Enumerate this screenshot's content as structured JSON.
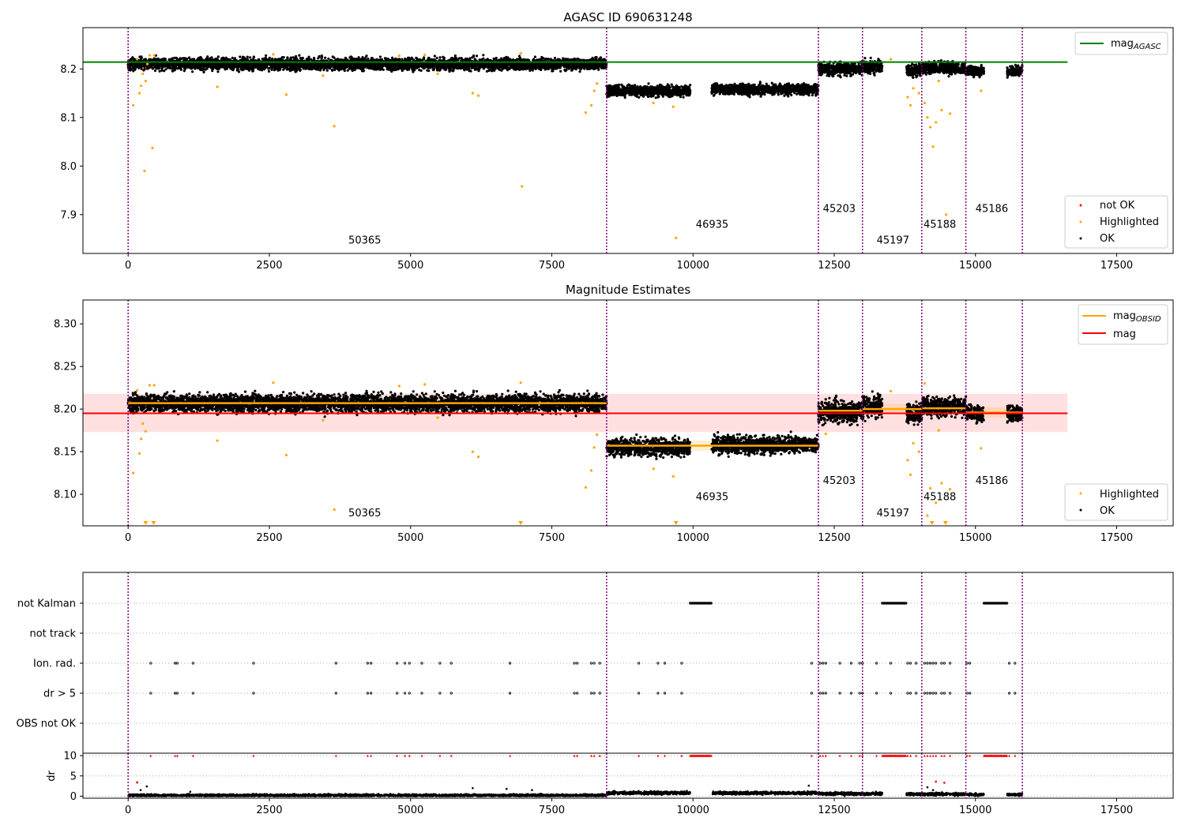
{
  "chart_data": [
    {
      "type": "scatter",
      "title": "AGASC ID 690631248",
      "xlim": [
        -800,
        18500
      ],
      "ylim": [
        7.82,
        8.285
      ],
      "xticks": [
        0,
        2500,
        5000,
        7500,
        10000,
        12500,
        15000,
        17500
      ],
      "xtick_labels": [
        "0",
        "2500",
        "5000",
        "7500",
        "10000",
        "12500",
        "15000",
        "17500"
      ],
      "yticks": [
        7.9,
        8.0,
        8.1,
        8.2
      ],
      "ytick_labels": [
        "7.9",
        "8.0",
        "8.1",
        "8.2"
      ],
      "obsid_boundaries": [
        0,
        8470,
        12220,
        13000,
        14050,
        14830,
        15830
      ],
      "obsid_labels": [
        {
          "text": "50365",
          "x": 3900,
          "y": 7.84
        },
        {
          "text": "46935",
          "x": 10050,
          "y": 7.873
        },
        {
          "text": "45203",
          "x": 12300,
          "y": 7.905
        },
        {
          "text": "45197",
          "x": 13250,
          "y": 7.84
        },
        {
          "text": "45188",
          "x": 14080,
          "y": 7.873
        },
        {
          "text": "45186",
          "x": 15000,
          "y": 7.905
        }
      ],
      "reference_lines": [
        {
          "name": "mag_AGASC",
          "value": 8.214,
          "x_range": [
            -800,
            16630
          ],
          "color": "#008000"
        }
      ],
      "ok_segments": [
        {
          "x": [
            0,
            8470
          ],
          "center": 8.21,
          "spread": 0.012
        },
        {
          "x": [
            8470,
            9950
          ],
          "center": 8.155,
          "spread": 0.011
        },
        {
          "x": [
            10330,
            12220
          ],
          "center": 8.158,
          "spread": 0.011
        },
        {
          "x": [
            12220,
            13000
          ],
          "center": 8.2,
          "spread": 0.013
        },
        {
          "x": [
            13000,
            13350
          ],
          "center": 8.205,
          "spread": 0.013
        },
        {
          "x": [
            13780,
            14050
          ],
          "center": 8.197,
          "spread": 0.013
        },
        {
          "x": [
            14050,
            14830
          ],
          "center": 8.203,
          "spread": 0.012
        },
        {
          "x": [
            14830,
            15150
          ],
          "center": 8.195,
          "spread": 0.01
        },
        {
          "x": [
            15560,
            15830
          ],
          "center": 8.196,
          "spread": 0.01
        }
      ],
      "highlighted_points": [
        [
          90,
          8.125
        ],
        [
          160,
          8.22
        ],
        [
          200,
          8.15
        ],
        [
          230,
          8.165
        ],
        [
          260,
          8.19
        ],
        [
          290,
          7.99
        ],
        [
          310,
          8.175
        ],
        [
          340,
          8.21
        ],
        [
          380,
          8.228
        ],
        [
          430,
          8.037
        ],
        [
          460,
          8.228
        ],
        [
          1580,
          8.163
        ],
        [
          2570,
          8.23
        ],
        [
          2800,
          8.147
        ],
        [
          3450,
          8.186
        ],
        [
          3650,
          8.082
        ],
        [
          4800,
          8.227
        ],
        [
          5250,
          8.229
        ],
        [
          5480,
          8.19
        ],
        [
          6100,
          8.15
        ],
        [
          6200,
          8.145
        ],
        [
          6950,
          8.232
        ],
        [
          6970,
          7.958
        ],
        [
          8100,
          8.11
        ],
        [
          8200,
          8.125
        ],
        [
          8250,
          8.155
        ],
        [
          8300,
          8.17
        ],
        [
          9300,
          8.13
        ],
        [
          9650,
          8.122
        ],
        [
          9700,
          7.852
        ],
        [
          13500,
          8.22
        ],
        [
          13800,
          8.142
        ],
        [
          13850,
          8.125
        ],
        [
          13900,
          8.16
        ],
        [
          14000,
          8.15
        ],
        [
          14100,
          8.13
        ],
        [
          14150,
          8.1
        ],
        [
          14200,
          8.08
        ],
        [
          14250,
          8.04
        ],
        [
          14300,
          8.09
        ],
        [
          14350,
          8.175
        ],
        [
          14400,
          8.115
        ],
        [
          14480,
          7.9
        ],
        [
          14550,
          8.108
        ],
        [
          15100,
          8.155
        ]
      ],
      "legend": {
        "placement": "upper-right",
        "entries": [
          "mag_AGASC"
        ]
      },
      "legend2": {
        "placement": "lower-right",
        "entries": [
          "not OK",
          "Highlighted",
          "OK"
        ]
      }
    },
    {
      "type": "scatter",
      "title": "Magnitude Estimates",
      "xlim": [
        -800,
        18500
      ],
      "ylim": [
        8.063,
        8.328
      ],
      "xticks": [
        0,
        2500,
        5000,
        7500,
        10000,
        12500,
        15000,
        17500
      ],
      "xtick_labels": [
        "0",
        "2500",
        "5000",
        "7500",
        "10000",
        "12500",
        "15000",
        "17500"
      ],
      "yticks": [
        8.1,
        8.15,
        8.2,
        8.25,
        8.3
      ],
      "ytick_labels": [
        "8.10",
        "8.15",
        "8.20",
        "8.25",
        "8.30"
      ],
      "obsid_boundaries": [
        0,
        8470,
        12220,
        13000,
        14050,
        14830,
        15830
      ],
      "obsid_labels": [
        {
          "text": "50365",
          "x": 3900,
          "y": 8.074
        },
        {
          "text": "46935",
          "x": 10050,
          "y": 8.093
        },
        {
          "text": "45203",
          "x": 12300,
          "y": 8.112
        },
        {
          "text": "45197",
          "x": 13250,
          "y": 8.074
        },
        {
          "text": "45188",
          "x": 14080,
          "y": 8.093
        },
        {
          "text": "45186",
          "x": 15000,
          "y": 8.112
        }
      ],
      "mag_band": {
        "center": 8.195,
        "low": 8.173,
        "high": 8.218,
        "x_range": [
          -800,
          16630
        ]
      },
      "mag_line": {
        "value": 8.195,
        "x_range": [
          -800,
          16630
        ],
        "color": "#ff0000"
      },
      "obsid_mags": [
        {
          "x": [
            0,
            8470
          ],
          "value": 8.207
        },
        {
          "x": [
            8470,
            12220
          ],
          "value": 8.157
        },
        {
          "x": [
            12220,
            13000
          ],
          "value": 8.198
        },
        {
          "x": [
            13000,
            14050
          ],
          "value": 8.2
        },
        {
          "x": [
            14050,
            14830
          ],
          "value": 8.201
        },
        {
          "x": [
            14830,
            15830
          ],
          "value": 8.196
        }
      ],
      "ok_segments": [
        {
          "x": [
            0,
            8470
          ],
          "center": 8.207,
          "spread": 0.01
        },
        {
          "x": [
            8470,
            9950
          ],
          "center": 8.155,
          "spread": 0.01
        },
        {
          "x": [
            10330,
            12220
          ],
          "center": 8.158,
          "spread": 0.01
        },
        {
          "x": [
            12220,
            13000
          ],
          "center": 8.197,
          "spread": 0.013
        },
        {
          "x": [
            13000,
            13350
          ],
          "center": 8.203,
          "spread": 0.013
        },
        {
          "x": [
            13780,
            14050
          ],
          "center": 8.195,
          "spread": 0.012
        },
        {
          "x": [
            14050,
            14830
          ],
          "center": 8.203,
          "spread": 0.011
        },
        {
          "x": [
            14830,
            15150
          ],
          "center": 8.195,
          "spread": 0.009
        },
        {
          "x": [
            15560,
            15830
          ],
          "center": 8.195,
          "spread": 0.009
        }
      ],
      "highlighted_points": [
        [
          90,
          8.125
        ],
        [
          160,
          8.222
        ],
        [
          200,
          8.148
        ],
        [
          230,
          8.165
        ],
        [
          260,
          8.183
        ],
        [
          310,
          8.174
        ],
        [
          380,
          8.228
        ],
        [
          460,
          8.228
        ],
        [
          1580,
          8.163
        ],
        [
          2570,
          8.231
        ],
        [
          2800,
          8.146
        ],
        [
          3450,
          8.187
        ],
        [
          3650,
          8.082
        ],
        [
          4800,
          8.227
        ],
        [
          5250,
          8.229
        ],
        [
          5480,
          8.19
        ],
        [
          6100,
          8.15
        ],
        [
          6200,
          8.144
        ],
        [
          6950,
          8.231
        ],
        [
          8100,
          8.108
        ],
        [
          8200,
          8.128
        ],
        [
          8250,
          8.155
        ],
        [
          8300,
          8.17
        ],
        [
          9300,
          8.13
        ],
        [
          9650,
          8.121
        ],
        [
          12350,
          8.171
        ],
        [
          13500,
          8.221
        ],
        [
          13800,
          8.14
        ],
        [
          13850,
          8.123
        ],
        [
          13900,
          8.16
        ],
        [
          14000,
          8.15
        ],
        [
          14100,
          8.23
        ],
        [
          14150,
          8.075
        ],
        [
          14200,
          8.107
        ],
        [
          14300,
          8.09
        ],
        [
          14350,
          8.175
        ],
        [
          14400,
          8.113
        ],
        [
          14550,
          8.106
        ],
        [
          15100,
          8.154
        ]
      ],
      "out_of_range_markers": [
        310,
        450,
        6950,
        9700,
        14230,
        14470
      ],
      "legend": {
        "placement": "upper-right",
        "entries": [
          "mag_OBSID",
          "mag"
        ]
      },
      "legend2": {
        "placement": "lower-right",
        "entries": [
          "Highlighted",
          "OK"
        ]
      }
    },
    {
      "type": "scatter",
      "title": "",
      "xlim": [
        -800,
        18500
      ],
      "categories": [
        "not Kalman",
        "not track",
        "Ion. rad.",
        "dr > 5",
        "OBS not OK"
      ],
      "obsid_boundaries": [
        0,
        8470,
        12220,
        13000,
        14050,
        14830,
        15830
      ],
      "flag_runs": [
        {
          "category": "not Kalman",
          "x": [
            9950,
            10330
          ]
        },
        {
          "category": "not Kalman",
          "x": [
            13350,
            13780
          ]
        },
        {
          "category": "not Kalman",
          "x": [
            15150,
            15560
          ]
        }
      ],
      "flag_points": {
        "Ion. rad.": [
          400,
          830,
          870,
          1150,
          2220,
          3680,
          4240,
          4300,
          4760,
          4900,
          4980,
          5200,
          5520,
          5720,
          6760,
          7900,
          7950,
          8200,
          8250,
          8350,
          9040,
          9380,
          9500,
          9800,
          12100,
          12250,
          12300,
          12350,
          12600,
          12800,
          12950,
          13000,
          13250,
          13500,
          13800,
          13850,
          13950,
          14100,
          14150,
          14200,
          14250,
          14300,
          14400,
          14450,
          14550,
          14850,
          14900,
          15600,
          15700
        ],
        "dr > 5": [
          400,
          830,
          870,
          1150,
          2220,
          3680,
          4240,
          4300,
          4760,
          4900,
          4980,
          5200,
          5520,
          5720,
          6760,
          7900,
          7950,
          8200,
          8250,
          8350,
          9040,
          9380,
          9500,
          9800,
          12100,
          12250,
          12300,
          12350,
          12600,
          12800,
          12950,
          13000,
          13250,
          13500,
          13800,
          13850,
          13950,
          14100,
          14150,
          14200,
          14250,
          14300,
          14400,
          14450,
          14550,
          14850,
          14900,
          15600,
          15700
        ]
      }
    },
    {
      "type": "scatter",
      "title": "",
      "xlim": [
        -800,
        18500
      ],
      "ylim": [
        -0.5,
        10.6
      ],
      "ylabel": "dr",
      "xticks": [
        0,
        2500,
        5000,
        7500,
        10000,
        12500,
        15000,
        17500
      ],
      "xtick_labels": [
        "0",
        "2500",
        "5000",
        "7500",
        "10000",
        "12500",
        "15000",
        "17500"
      ],
      "yticks": [
        0,
        5,
        10
      ],
      "ytick_labels": [
        "0",
        "5",
        "10"
      ],
      "obsid_boundaries": [
        0,
        8470,
        12220,
        13000,
        14050,
        14830,
        15830
      ],
      "dr_segments": [
        {
          "x": [
            0,
            8470
          ],
          "center": 0.2,
          "spread": 0.3
        },
        {
          "x": [
            8470,
            9950
          ],
          "center": 0.8,
          "spread": 0.35
        },
        {
          "x": [
            10330,
            12220
          ],
          "center": 0.8,
          "spread": 0.35
        },
        {
          "x": [
            12220,
            13350
          ],
          "center": 0.6,
          "spread": 0.35
        },
        {
          "x": [
            13780,
            14830
          ],
          "center": 0.5,
          "spread": 0.35
        },
        {
          "x": [
            14830,
            15150
          ],
          "center": 0.4,
          "spread": 0.3
        },
        {
          "x": [
            15560,
            15830
          ],
          "center": 0.4,
          "spread": 0.3
        }
      ],
      "dr_outliers": [
        [
          160,
          3.4
        ],
        [
          220,
          1.5
        ],
        [
          330,
          2.4
        ],
        [
          1100,
          1.1
        ],
        [
          6100,
          2.0
        ],
        [
          6700,
          1.8
        ],
        [
          7150,
          1.5
        ],
        [
          12050,
          2.6
        ],
        [
          14150,
          2.2
        ],
        [
          14250,
          1.5
        ]
      ],
      "dr_red_outliers": [
        [
          160,
          3.4
        ],
        [
          14300,
          3.6
        ],
        [
          14450,
          3.3
        ]
      ],
      "capped_value": 10
    }
  ]
}
